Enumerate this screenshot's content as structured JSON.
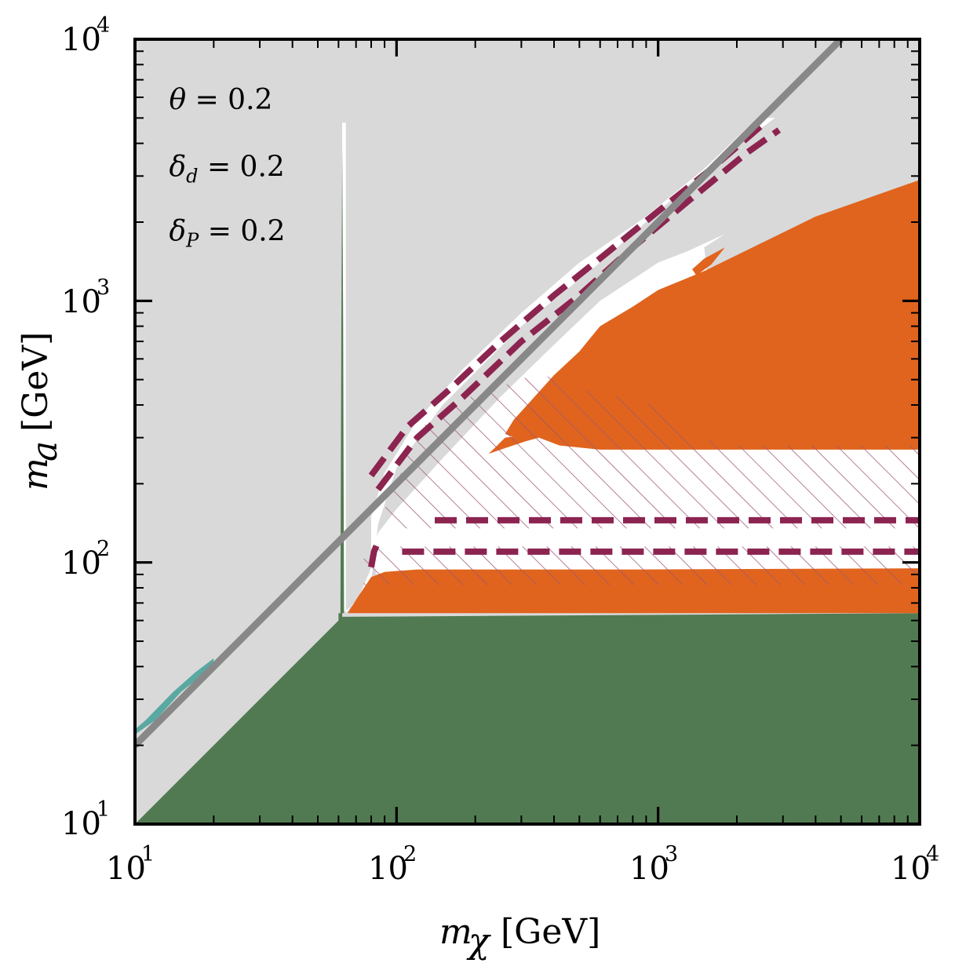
{
  "chart_data": {
    "type": "region-plot",
    "scale": "log-log",
    "xlabel": {
      "symbol": "m",
      "sub": "χ",
      "unit": "[GeV]"
    },
    "ylabel": {
      "symbol": "m",
      "sub": "a",
      "unit": "[GeV]"
    },
    "xlim": [
      10,
      10000
    ],
    "ylim": [
      10,
      10000
    ],
    "x_ticks": [
      {
        "value": 10,
        "base": "10",
        "exp": "1"
      },
      {
        "value": 100,
        "base": "10",
        "exp": "2"
      },
      {
        "value": 1000,
        "base": "10",
        "exp": "3"
      },
      {
        "value": 10000,
        "base": "10",
        "exp": "4"
      }
    ],
    "y_ticks": [
      {
        "value": 10,
        "base": "10",
        "exp": "1"
      },
      {
        "value": 100,
        "base": "10",
        "exp": "2"
      },
      {
        "value": 1000,
        "base": "10",
        "exp": "3"
      },
      {
        "value": 10000,
        "base": "10",
        "exp": "4"
      }
    ],
    "annotations": [
      {
        "sym": "θ",
        "sub": "",
        "value": " = 0.2",
        "x": 13.5,
        "y": 5400
      },
      {
        "sym": "δ",
        "sub": "d",
        "value": " = 0.2",
        "x": 13.5,
        "y": 3000
      },
      {
        "sym": "δ",
        "sub": "P",
        "value": " = 0.2",
        "x": 13.5,
        "y": 1700
      }
    ],
    "colors": {
      "background": "#d9d9d9",
      "allowed": "#ffffff",
      "green": "#527a52",
      "orange": "#e0641e",
      "maroon": "#8c2450",
      "hatch": "#9b5576",
      "gray_line": "#888888",
      "teal": "#5aa8a2"
    },
    "regions": [
      {
        "name": "allowed-white",
        "color": "#ffffff",
        "points": [
          [
            62,
            64
          ],
          [
            62,
            4800
          ],
          [
            64,
            4800
          ],
          [
            64,
            2000
          ],
          [
            64,
            64
          ],
          [
            80,
            85
          ],
          [
            85,
            140
          ],
          [
            100,
            230
          ],
          [
            150,
            400
          ],
          [
            300,
            800
          ],
          [
            600,
            1400
          ],
          [
            1000,
            2200
          ],
          [
            1600,
            3300
          ],
          [
            2800,
            5000
          ],
          [
            2400,
            5000
          ],
          [
            1500,
            3200
          ],
          [
            900,
            2100
          ],
          [
            500,
            1400
          ],
          [
            300,
            900
          ],
          [
            180,
            550
          ],
          [
            120,
            350
          ],
          [
            90,
            220
          ],
          [
            80,
            150
          ],
          [
            80,
            100
          ],
          [
            85,
            88
          ],
          [
            75,
            70
          ],
          [
            68,
            65
          ],
          [
            10000,
            65
          ],
          [
            10000,
            280
          ],
          [
            1800,
            280
          ],
          [
            1500,
            1600
          ],
          [
            1800,
            1800
          ],
          [
            1300,
            1550
          ],
          [
            1000,
            1400
          ],
          [
            600,
            1000
          ],
          [
            400,
            680
          ],
          [
            250,
            430
          ],
          [
            150,
            250
          ],
          [
            100,
            160
          ],
          [
            85,
            130
          ],
          [
            80,
            110
          ],
          [
            80,
            95
          ],
          [
            70,
            70
          ]
        ]
      },
      {
        "name": "green-region",
        "color": "#527a52",
        "points": [
          [
            10,
            10
          ],
          [
            60,
            60
          ],
          [
            60,
            64
          ],
          [
            62,
            64
          ],
          [
            62,
            62
          ],
          [
            10000,
            64
          ],
          [
            10000,
            10
          ],
          [
            10,
            10
          ]
        ]
      },
      {
        "name": "green-spike",
        "color": "#527a52",
        "points": [
          [
            60,
            64
          ],
          [
            61,
            64
          ],
          [
            61.5,
            800
          ],
          [
            62,
            3800
          ],
          [
            62.5,
            800
          ],
          [
            63,
            64
          ]
        ]
      },
      {
        "name": "orange-lower-band",
        "color": "#e0641e",
        "points": [
          [
            65,
            64
          ],
          [
            10000,
            64
          ],
          [
            10000,
            95
          ],
          [
            800,
            94
          ],
          [
            120,
            94
          ],
          [
            90,
            92
          ],
          [
            80,
            88
          ],
          [
            70,
            72
          ],
          [
            65,
            64
          ]
        ]
      },
      {
        "name": "orange-upper-region",
        "color": "#e0641e",
        "points": [
          [
            310,
            290
          ],
          [
            350,
            300
          ],
          [
            420,
            280
          ],
          [
            600,
            270
          ],
          [
            10000,
            270
          ],
          [
            10000,
            2900
          ],
          [
            4000,
            2100
          ],
          [
            1500,
            1300
          ],
          [
            1000,
            1100
          ],
          [
            800,
            950
          ],
          [
            600,
            800
          ],
          [
            500,
            640
          ],
          [
            400,
            520
          ],
          [
            330,
            420
          ],
          [
            280,
            350
          ],
          [
            260,
            310
          ]
        ]
      },
      {
        "name": "orange-lower-bump",
        "color": "#e0641e",
        "points": [
          [
            225,
            260
          ],
          [
            260,
            300
          ],
          [
            300,
            305
          ],
          [
            310,
            290
          ],
          [
            250,
            270
          ]
        ]
      },
      {
        "name": "orange-upper-tip",
        "color": "#e0641e",
        "points": [
          [
            1400,
            1250
          ],
          [
            1600,
            1380
          ],
          [
            1800,
            1600
          ],
          [
            1500,
            1450
          ],
          [
            1350,
            1320
          ]
        ]
      },
      {
        "name": "teal-strip",
        "color": "#5aa8a2",
        "points": [
          [
            10,
            22
          ],
          [
            12,
            25
          ],
          [
            15,
            32
          ],
          [
            18,
            37
          ],
          [
            20,
            40
          ],
          [
            20,
            43
          ],
          [
            17,
            38
          ],
          [
            14,
            32
          ],
          [
            11,
            25
          ],
          [
            10,
            23
          ]
        ]
      }
    ],
    "hatched": [
      {
        "name": "hatch-lower",
        "points": [
          [
            75,
            82
          ],
          [
            10000,
            82
          ],
          [
            10000,
            115
          ],
          [
            75,
            115
          ]
        ]
      },
      {
        "name": "hatch-middle",
        "points": [
          [
            90,
            135
          ],
          [
            10000,
            135
          ],
          [
            10000,
            280
          ],
          [
            1700,
            280
          ],
          [
            900,
            410
          ],
          [
            500,
            460
          ],
          [
            350,
            530
          ],
          [
            250,
            470
          ],
          [
            180,
            420
          ],
          [
            120,
            320
          ],
          [
            100,
            200
          ],
          [
            90,
            160
          ]
        ]
      }
    ],
    "dashed_lines": [
      {
        "name": "dashed-upper-band",
        "points": [
          [
            80,
            215
          ],
          [
            110,
            330
          ],
          [
            160,
            460
          ],
          [
            250,
            700
          ],
          [
            400,
            1050
          ],
          [
            650,
            1550
          ],
          [
            1000,
            2200
          ],
          [
            1600,
            3200
          ],
          [
            2500,
            4700
          ]
        ]
      },
      {
        "name": "dashed-lower-band",
        "points": [
          [
            85,
            190
          ],
          [
            120,
            300
          ],
          [
            180,
            430
          ],
          [
            300,
            700
          ],
          [
            500,
            1050
          ],
          [
            800,
            1600
          ],
          [
            1300,
            2400
          ],
          [
            2200,
            3700
          ],
          [
            2900,
            4500
          ]
        ]
      },
      {
        "name": "dashed-horizontal-upper",
        "points": [
          [
            140,
            145
          ],
          [
            10000,
            145
          ]
        ]
      },
      {
        "name": "dashed-horizontal-lower",
        "points": [
          [
            105,
            110
          ],
          [
            10000,
            110
          ]
        ]
      },
      {
        "name": "dashed-kink-left",
        "points": [
          [
            80,
            96
          ],
          [
            82,
            110
          ],
          [
            85,
            120
          ]
        ]
      }
    ],
    "gray_line": {
      "name": "m_a = 2 m_chi",
      "points": [
        [
          10,
          20
        ],
        [
          5000,
          10000
        ]
      ]
    }
  }
}
